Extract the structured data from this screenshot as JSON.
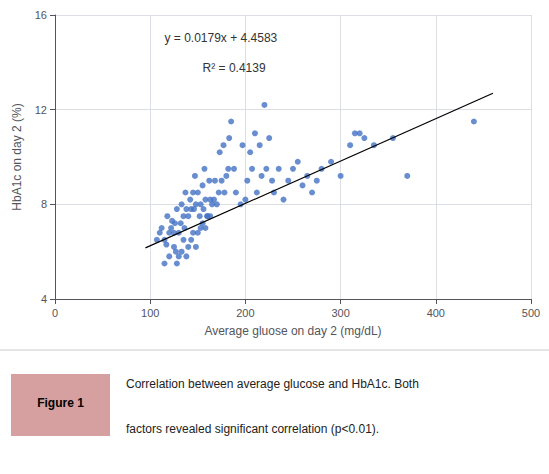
{
  "chart_data": {
    "type": "scatter",
    "xlabel": "Average gluose on day 2 (mg/dL)",
    "ylabel": "HbA1c on day 2 (%)",
    "xlim": [
      0,
      500
    ],
    "ylim": [
      4,
      16
    ],
    "xticks": [
      0,
      100,
      200,
      300,
      400,
      500
    ],
    "yticks": [
      4,
      8,
      12,
      16
    ],
    "grid": true,
    "annotations": [
      "y = 0.0179x + 4.4583",
      "R² = 0.4139"
    ],
    "caption": {
      "label": "Figure 1",
      "color": "#D6A0A0",
      "lines": [
        "Correlation between average glucose and HbA1c. Both",
        "factors revealed significant correlation (p<0.01)."
      ]
    },
    "series": [
      {
        "type": "scatter",
        "color": "#4472C4",
        "x": [
          107,
          110,
          112,
          115,
          117,
          118,
          120,
          122,
          123,
          125,
          126,
          127,
          128,
          130,
          132,
          133,
          135,
          136,
          137,
          138,
          140,
          142,
          143,
          145,
          146,
          147,
          148,
          150,
          152,
          153,
          155,
          156,
          157,
          158,
          160,
          162,
          163,
          115,
          120,
          125,
          128,
          130,
          133,
          135,
          138,
          140,
          143,
          145,
          148,
          150,
          153,
          155,
          158,
          160,
          163,
          165,
          167,
          168,
          170,
          172,
          173,
          175,
          177,
          178,
          180,
          182,
          183,
          185,
          188,
          190,
          195,
          197,
          200,
          202,
          205,
          207,
          210,
          212,
          215,
          217,
          220,
          222,
          225,
          228,
          230,
          235,
          240,
          245,
          250,
          255,
          260,
          265,
          270,
          275,
          280,
          290,
          300,
          310,
          315,
          320,
          325,
          335,
          355,
          370,
          440
        ],
        "values": [
          6.5,
          6.8,
          7.0,
          6.5,
          6.3,
          7.5,
          6.8,
          7.0,
          7.3,
          6.8,
          7.2,
          6.0,
          7.8,
          6.8,
          7.2,
          8.0,
          7.5,
          7.0,
          8.5,
          7.8,
          7.5,
          8.2,
          7.8,
          8.5,
          7.8,
          9.2,
          8.0,
          8.5,
          7.5,
          8.0,
          8.8,
          7.8,
          9.5,
          8.2,
          7.5,
          9.0,
          8.2,
          5.5,
          5.8,
          6.2,
          5.5,
          5.8,
          6.0,
          6.5,
          5.8,
          6.2,
          6.5,
          6.8,
          6.2,
          6.8,
          7.0,
          7.2,
          7.0,
          7.5,
          7.5,
          8.0,
          8.2,
          9.0,
          8.0,
          8.5,
          10.2,
          9.0,
          10.5,
          8.5,
          9.2,
          9.5,
          10.8,
          11.5,
          9.5,
          8.5,
          8.0,
          10.5,
          8.2,
          9.0,
          10.2,
          9.5,
          11.0,
          8.5,
          10.5,
          9.2,
          12.2,
          9.5,
          10.8,
          9.0,
          8.5,
          9.5,
          8.2,
          9.0,
          9.5,
          9.8,
          8.8,
          9.2,
          8.5,
          9.0,
          9.5,
          9.8,
          9.2,
          10.5,
          11.0,
          11.0,
          10.8,
          10.5,
          10.8,
          9.2,
          11.5
        ]
      },
      {
        "type": "line",
        "color": "#000000",
        "x": [
          95,
          460
        ],
        "values": [
          6.1588,
          12.6923
        ]
      }
    ]
  }
}
